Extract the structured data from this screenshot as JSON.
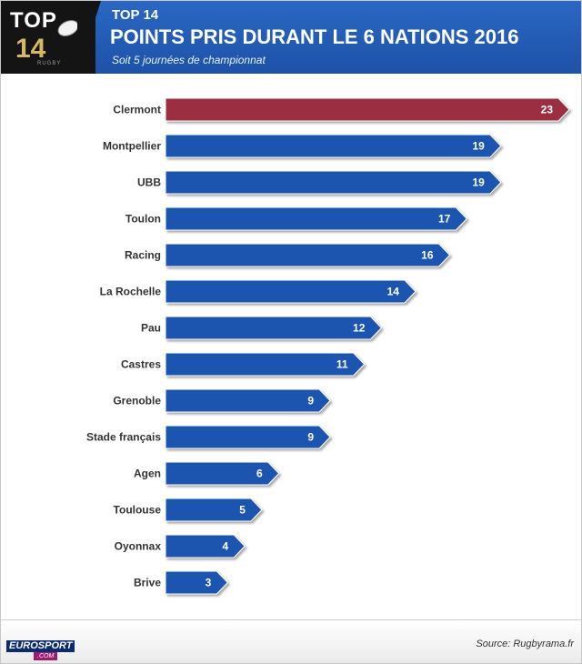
{
  "header": {
    "logo_top": "TOP",
    "logo_num": "14",
    "logo_sub": "RUGBY",
    "title_small": "TOP 14",
    "title_main": "POINTS PRIS DURANT LE 6 NATIONS 2016",
    "subtitle": "Soit 5 journées de championnat"
  },
  "footer": {
    "brand": "EUROSPORT",
    "brand_sub": ".COM",
    "source": "Source: Rugbyrama.fr"
  },
  "colors": {
    "bar": "#1f55b0",
    "bar_highlight": "#9b2f3f",
    "label": "#333333",
    "value": "#ffffff"
  },
  "chart_data": {
    "type": "bar",
    "orientation": "horizontal",
    "categories": [
      "Clermont",
      "Montpellier",
      "UBB",
      "Toulon",
      "Racing",
      "La Rochelle",
      "Pau",
      "Castres",
      "Grenoble",
      "Stade français",
      "Agen",
      "Toulouse",
      "Oyonnax",
      "Brive"
    ],
    "values": [
      23,
      19,
      19,
      17,
      16,
      14,
      12,
      11,
      9,
      9,
      6,
      5,
      4,
      3
    ],
    "highlight": "Clermont",
    "xlim": [
      0,
      23
    ],
    "grid": false,
    "data_labels": true
  }
}
